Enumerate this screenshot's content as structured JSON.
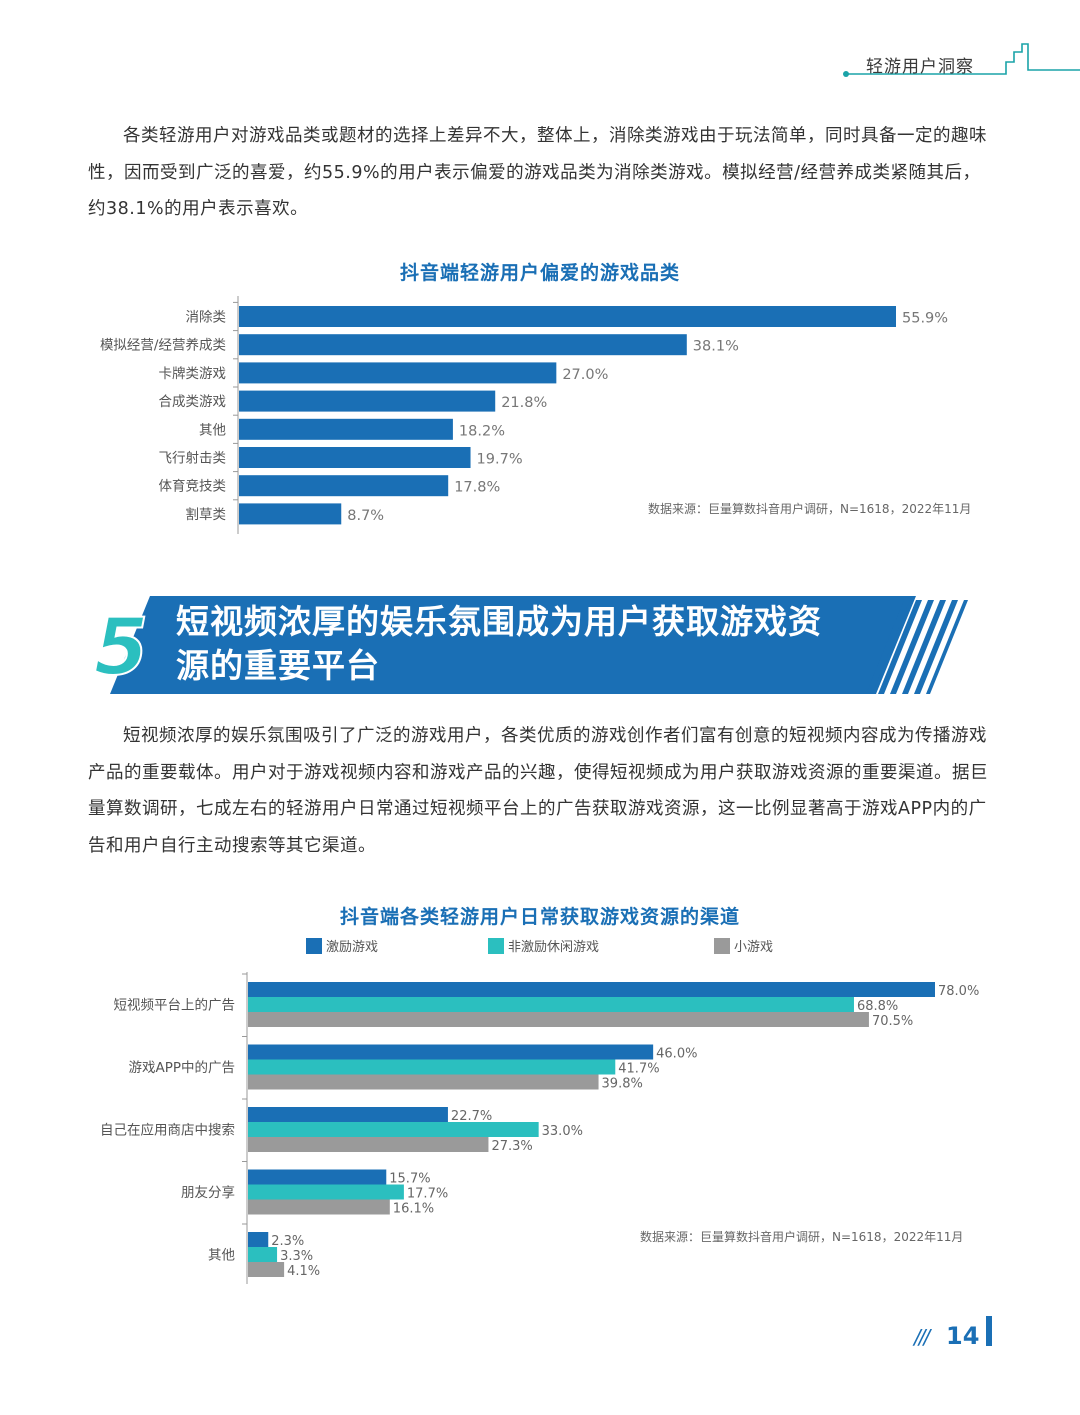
{
  "header": {
    "title": "轻游用户洞察"
  },
  "intro_paragraph": "各类轻游用户对游戏品类或题材的选择上差异不大，整体上，消除类游戏由于玩法简单，同时具备一定的趣味性，因而受到广泛的喜爱，约55.9%的用户表示偏爱的游戏品类为消除类游戏。模拟经营/经营养成类紧随其后，约38.1%的用户表示喜欢。",
  "section": {
    "number": "5",
    "title_line1": "短视频浓厚的娱乐氛围成为用户获取游戏资",
    "title_line2": "源的重要平台"
  },
  "section_paragraph": "短视频浓厚的娱乐氛围吸引了广泛的游戏用户，各类优质的游戏创作者们富有创意的短视频内容成为传播游戏产品的重要载体。用户对于游戏视频内容和游戏产品的兴趣，使得短视频成为用户获取游戏资源的重要渠道。据巨量算数调研，七成左右的轻游用户日常通过短视频平台上的广告获取游戏资源，这一比例显著高于游戏APP内的广告和用户自行主动搜索等其它渠道。",
  "page_number": "14",
  "page_slashes": "///",
  "colors": {
    "brand_blue": "#1a6fb5",
    "teal": "#2bbfbf",
    "gray": "#9a9a9a"
  },
  "chart_data": [
    {
      "type": "bar",
      "orientation": "horizontal",
      "title": "抖音端轻游用户偏爱的游戏品类",
      "categories": [
        "消除类",
        "模拟经营/经营养成类",
        "卡牌类游戏",
        "合成类游戏",
        "其他",
        "飞行射击类",
        "体育竞技类",
        "割草类"
      ],
      "values": [
        55.9,
        38.1,
        27.0,
        21.8,
        18.2,
        19.7,
        17.8,
        8.7
      ],
      "value_labels": [
        "55.9%",
        "38.1%",
        "27.0%",
        "21.8%",
        "18.2%",
        "19.7%",
        "17.8%",
        "8.7%"
      ],
      "color": "#1a6fb5",
      "source": "数据来源：巨量算数抖音用户调研，N=1618，2022年11月"
    },
    {
      "type": "bar",
      "orientation": "horizontal",
      "title": "抖音端各类轻游用户日常获取游戏资源的渠道",
      "categories": [
        "短视频平台上的广告",
        "游戏APP中的广告",
        "自己在应用商店中搜索",
        "朋友分享",
        "其他"
      ],
      "series": [
        {
          "name": "激励游戏",
          "color": "#1a6fb5",
          "values": [
            78.0,
            46.0,
            22.7,
            15.7,
            2.3
          ],
          "value_labels": [
            "78.0%",
            "46.0%",
            "22.7%",
            "15.7%",
            "2.3%"
          ]
        },
        {
          "name": "非激励休闲游戏",
          "color": "#2bbfbf",
          "values": [
            68.8,
            41.7,
            33.0,
            17.7,
            3.3
          ],
          "value_labels": [
            "68.8%",
            "41.7%",
            "33.0%",
            "17.7%",
            "3.3%"
          ]
        },
        {
          "name": "小游戏",
          "color": "#9a9a9a",
          "values": [
            70.5,
            39.8,
            27.3,
            16.1,
            4.1
          ],
          "value_labels": [
            "70.5%",
            "39.8%",
            "27.3%",
            "16.1%",
            "4.1%"
          ]
        }
      ],
      "legend_position": "top",
      "source": "数据来源：巨量算数抖音用户调研，N=1618，2022年11月"
    }
  ]
}
